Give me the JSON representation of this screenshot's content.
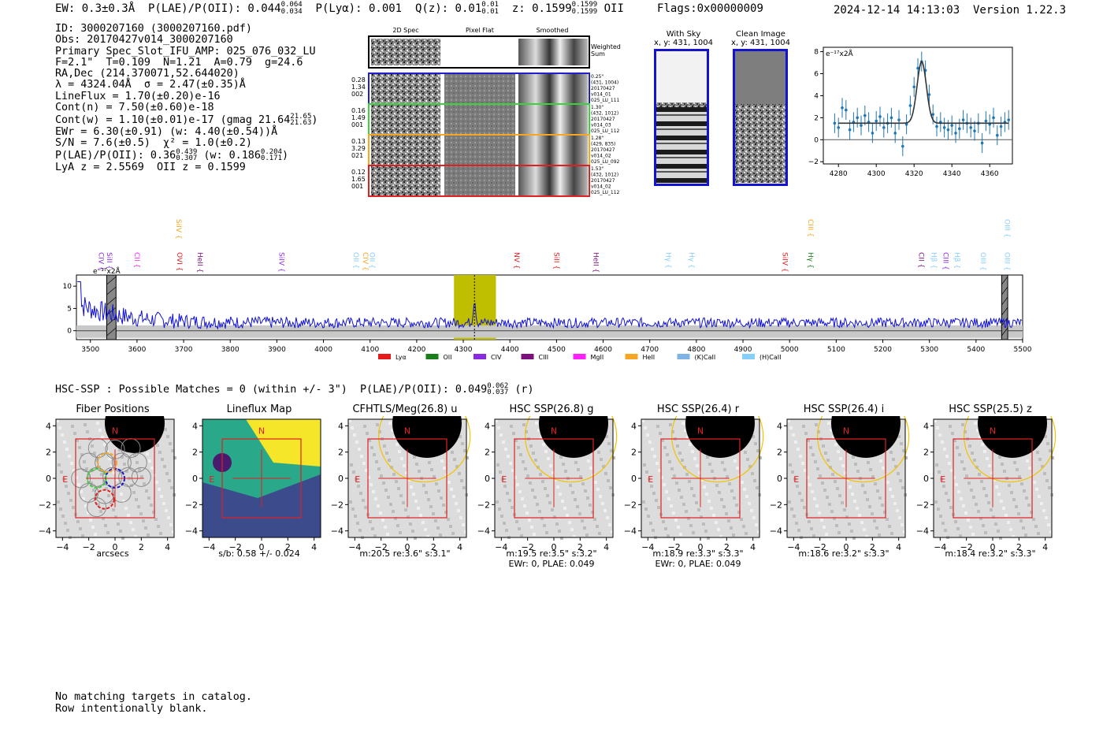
{
  "header": {
    "summary": "EW: 0.3±0.3Å  P(LAE)/P(OII): 0.044",
    "summary_sup": "0.064",
    "summary_sub": "0.034",
    "plya": "P(Lyα): 0.001",
    "qz": "Q(z): 0.01",
    "qz_sup": "0.01",
    "qz_sub": "0.01",
    "z": "z: 0.1599",
    "z_sup": "0.1599",
    "z_sub": "0.1599",
    "z_tail": "OII     Flags:0x00000009",
    "timestamp": "2024-12-14 14:13:03  Version 1.22.3"
  },
  "info": {
    "lines": [
      "ID: 3000207160 (3000207160.pdf)",
      "Obs: 20170427v014_3000207160",
      "Primary Spec_Slot_IFU_AMP: 025_076_032_LU",
      "F=2.1\"  T=0.109  N=1.21  A=0.79  g=24.6",
      "RA,Dec (214.370071,52.644020)",
      "λ = 4324.04Å  σ = 2.47(±0.35)Å",
      "LineFlux = 1.70(±0.20)e-16",
      "Cont(n) = 7.50(±0.60)e-18",
      "Cont(w) = 1.10(±0.01)e-17 (gmag 21.64",
      "EWr = 6.30(±0.91) (w: 4.40(±0.54))Å",
      "S/N = 7.6(±0.5)  χ² = 1.0(±0.2)",
      "P(LAE)/P(OII): 0.36",
      "LyA z = 2.5569  OII z = 0.1599"
    ],
    "gmag_sup": "21.65",
    "gmag_sub": "21.63",
    "plae_sup": "0.439",
    "plae_sub": "0.307",
    "plae_w": "(w: 0.186",
    "plae_w_sup": "0.204",
    "plae_w_sub": "0.171"
  },
  "stamps": {
    "col_headers": [
      "2D Spec",
      "Pixel Flat",
      "Smoothed"
    ],
    "weighted_label": [
      "Weighted",
      "Sum"
    ],
    "rows": [
      {
        "left": [
          "0.28",
          "1.34",
          "002"
        ],
        "right": [
          "0.25\"",
          "(431, 1004)",
          "20170427",
          "v014_01",
          "025_LU_111"
        ],
        "color": "#1f1fcf"
      },
      {
        "left": [
          "0.16",
          "1.49",
          "001"
        ],
        "right": [
          "1.30\"",
          "(432, 1012)",
          "20170427",
          "v014_03",
          "025_LU_112"
        ],
        "color": "#3cd23c"
      },
      {
        "left": [
          "0.13",
          "3.29",
          "021"
        ],
        "right": [
          "1.28\"",
          "(429, 835)",
          "20170427",
          "v014_02",
          "025_LU_092"
        ],
        "color": "#f5a623"
      },
      {
        "left": [
          "0.12",
          "1.65",
          "001"
        ],
        "right": [
          "1.53\"",
          "(432, 1012)",
          "20170427",
          "v014_02",
          "025_LU_112"
        ],
        "color": "#e02020"
      }
    ]
  },
  "sky": {
    "with_sky_title": "With Sky",
    "with_sky_xy": "x, y: 431, 1004",
    "clean_title": "Clean Image",
    "clean_xy": "x, y: 431, 1004"
  },
  "line_fit": {
    "units": "e⁻¹⁷x2Å",
    "xticks": [
      "4280",
      "4300",
      "4320",
      "4340",
      "4360"
    ],
    "yticks": [
      "−2",
      "0",
      "2",
      "4",
      "6",
      "8"
    ]
  },
  "spectrum": {
    "units": "e⁻¹⁷x2Å",
    "xticks": [
      "3500",
      "3600",
      "3700",
      "3800",
      "3900",
      "4000",
      "4100",
      "4200",
      "4300",
      "4400",
      "4500",
      "4600",
      "4700",
      "4800",
      "4900",
      "5000",
      "5100",
      "5200",
      "5300",
      "5400",
      "5500"
    ],
    "yticks": [
      "0",
      "5",
      "10"
    ],
    "legend": [
      {
        "name": "Lyα",
        "color": "#e41a1c"
      },
      {
        "name": "OII",
        "color": "#1a7f1a"
      },
      {
        "name": "CIV",
        "color": "#8a2be2"
      },
      {
        "name": "CIII",
        "color": "#7b0f7b"
      },
      {
        "name": "MgII",
        "color": "#ff22ff"
      },
      {
        "name": "HeII",
        "color": "#f5a623"
      },
      {
        "name": "(K)CaII",
        "color": "#7fb3e6"
      },
      {
        "name": "(H)CaII",
        "color": "#87cefa"
      }
    ],
    "line_labels": [
      {
        "text": "CIV",
        "w": 3518,
        "color": "#8a2be2",
        "row": 1
      },
      {
        "text": "SiII",
        "w": 3536,
        "color": "#8a2be2",
        "row": 1
      },
      {
        "text": "CII",
        "w": 3595,
        "color": "#ff22ff",
        "row": 1
      },
      {
        "text": "SiIV",
        "w": 3685,
        "color": "#f5a623",
        "row": 0
      },
      {
        "text": "OVI",
        "w": 3686,
        "color": "#e41a1c",
        "row": 1
      },
      {
        "text": "HeII",
        "w": 3730,
        "color": "#7b0f7b",
        "row": 1
      },
      {
        "text": "SiIV",
        "w": 3905,
        "color": "#8a2be2",
        "row": 1
      },
      {
        "text": "OII",
        "w": 4065,
        "color": "#87cefa",
        "row": 1
      },
      {
        "text": "CIV",
        "w": 4085,
        "color": "#f5a623",
        "row": 1
      },
      {
        "text": "OII",
        "w": 4100,
        "color": "#87cefa",
        "row": 1
      },
      {
        "text": "NV",
        "w": 4410,
        "color": "#e41a1c",
        "row": 1
      },
      {
        "text": "SiII",
        "w": 4495,
        "color": "#e41a1c",
        "row": 1
      },
      {
        "text": "HeII",
        "w": 4580,
        "color": "#7b0f7b",
        "row": 1
      },
      {
        "text": "Hγ",
        "w": 4735,
        "color": "#87cefa",
        "row": 1
      },
      {
        "text": "Hγ",
        "w": 4785,
        "color": "#87cefa",
        "row": 1
      },
      {
        "text": "SiIV",
        "w": 4985,
        "color": "#e41a1c",
        "row": 1
      },
      {
        "text": "CIII",
        "w": 5040,
        "color": "#f5a623",
        "row": 0
      },
      {
        "text": "Hγ",
        "w": 5040,
        "color": "#1a7f1a",
        "row": 1
      },
      {
        "text": "CII",
        "w": 5278,
        "color": "#7b0f7b",
        "row": 1
      },
      {
        "text": "Hβ",
        "w": 5305,
        "color": "#87cefa",
        "row": 1
      },
      {
        "text": "CIII",
        "w": 5330,
        "color": "#8a2be2",
        "row": 1
      },
      {
        "text": "Hβ",
        "w": 5355,
        "color": "#87cefa",
        "row": 1
      },
      {
        "text": "OIII",
        "w": 5410,
        "color": "#87cefa",
        "row": 1
      },
      {
        "text": "OIII",
        "w": 5462,
        "color": "#87cefa",
        "row": 0
      },
      {
        "text": "OIII",
        "w": 5462,
        "color": "#87cefa",
        "row": 1
      }
    ]
  },
  "hsc": {
    "header": "HSC-SSP : Possible Matches = 0 (within +/- 3\")  P(LAE)/P(OII): 0.049",
    "header_sup": "0.062",
    "header_sub": "0.037",
    "header_tail": "(r)",
    "panels": [
      {
        "title": "Fiber Positions",
        "xlabel": "arcsecs",
        "sublabel": ""
      },
      {
        "title": "Lineflux Map",
        "xlabel": "s/b: 0.58 +/- 0.024",
        "sublabel": ""
      },
      {
        "title": "CFHTLS/Meg(26.8) u",
        "xlabel": "m:20.5  re:3.6\"  s:3.1\"",
        "sublabel": ""
      },
      {
        "title": "HSC SSP(26.8) g",
        "xlabel": "m:19.5  re:3.5\"  s:3.2\"",
        "sublabel": "EWr: 0, PLAE: 0.049"
      },
      {
        "title": "HSC SSP(26.4) r",
        "xlabel": "m:18.9  re:3.3\"  s:3.3\"",
        "sublabel": "EWr: 0, PLAE: 0.049"
      },
      {
        "title": "HSC SSP(26.4) i",
        "xlabel": "m:18.6  re:3.2\"  s:3.3\"",
        "sublabel": ""
      },
      {
        "title": "HSC SSP(25.5) z",
        "xlabel": "m:18.4  re:3.2\"  s:3.3\"",
        "sublabel": ""
      }
    ],
    "ticks": [
      "−4",
      "−2",
      "0",
      "2",
      "4"
    ],
    "north": "N",
    "east": "E"
  },
  "footer": {
    "line1": "No matching targets in catalog.",
    "line2": "Row intentionally blank."
  },
  "chart_data": [
    {
      "type": "scatter",
      "title": "",
      "xlabel": "",
      "ylabel": "e⁻¹⁷x2Å",
      "xlim": [
        4272,
        4372
      ],
      "ylim": [
        -2.2,
        8.4
      ],
      "series": [
        {
          "x": [
            4278,
            4280,
            4282,
            4284,
            4286,
            4288,
            4290,
            4292,
            4294,
            4296,
            4298,
            4300,
            4302,
            4304,
            4306,
            4308,
            4310,
            4312,
            4314,
            4316,
            4318,
            4320,
            4322,
            4324,
            4326,
            4328,
            4330,
            4332,
            4334,
            4336,
            4338,
            4340,
            4342,
            4344,
            4346,
            4348,
            4350,
            4352,
            4354,
            4356,
            4358,
            4360,
            4362,
            4364,
            4366,
            4368,
            4370
          ],
          "y": [
            1.5,
            1.1,
            2.9,
            2.7,
            0.9,
            1.6,
            2.0,
            1.3,
            2.2,
            1.6,
            0.6,
            1.7,
            2.1,
            1.1,
            1.5,
            2.0,
            0.6,
            1.8,
            -0.6,
            1.4,
            3.1,
            4.8,
            6.5,
            7.1,
            6.3,
            4.1,
            2.3,
            1.2,
            1.6,
            1.1,
            0.9,
            1.3,
            0.6,
            1.0,
            1.8,
            1.5,
            1.1,
            0.8,
            1.5,
            -0.3,
            1.7,
            1.4,
            2.0,
            0.4,
            1.2,
            1.6,
            1.8
          ]
        }
      ],
      "fit": {
        "continuum": 1.5,
        "center": 4324.04,
        "sigma": 2.47,
        "peak": 5.6
      }
    },
    {
      "type": "line",
      "title": "",
      "xlabel": "",
      "ylabel": "e⁻¹⁷x2Å",
      "xlim": [
        3470,
        5500
      ],
      "ylim": [
        -2,
        12.5
      ],
      "highlight_window": [
        4280,
        4370
      ],
      "line_marker": 4324,
      "masked_regions": [
        [
          3535,
          3555
        ],
        [
          5455,
          5468
        ]
      ]
    }
  ]
}
